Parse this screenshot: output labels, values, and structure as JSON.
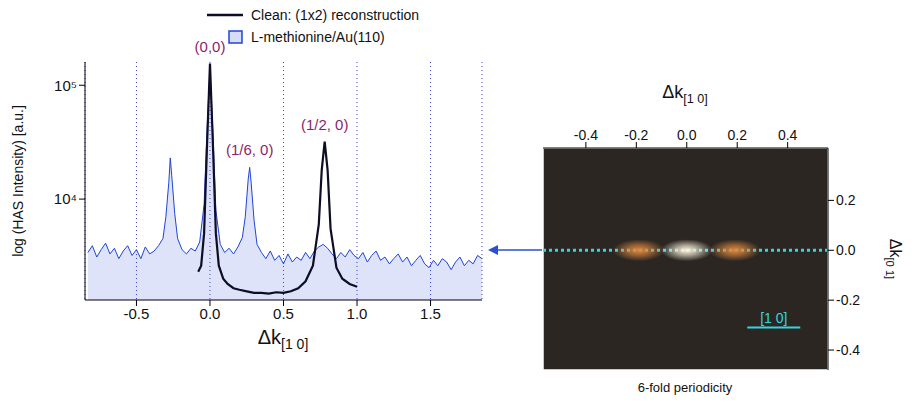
{
  "chart_data": [
    {
      "type": "line",
      "log": "y",
      "grid": true,
      "legend": "top",
      "x_label": "Δk[1 0]",
      "y_label": "log (HAS Intensity) [a.u.]",
      "xlim": [
        -0.85,
        1.85
      ],
      "ylim": [
        1300,
        160000
      ],
      "xticks": [
        -0.5,
        {
          "value": 0,
          "label": "0.0"
        },
        0.5,
        {
          "value": 1,
          "label": "1.0"
        },
        1.5
      ],
      "yticks": [
        {
          "value": 10000,
          "label": "10⁴"
        },
        {
          "value": 100000,
          "label": "10⁵"
        }
      ],
      "series": [
        {
          "name": "Clean: (1x2) reconstruction",
          "type": "line",
          "color": "#0d0d26",
          "x": [
            -0.08,
            -0.06,
            -0.04,
            -0.02,
            0,
            0.02,
            0.04,
            0.06,
            0.09,
            0.12,
            0.16,
            0.2,
            0.25,
            0.3,
            0.35,
            0.4,
            0.45,
            0.5,
            0.55,
            0.6,
            0.65,
            0.7,
            0.74,
            0.76,
            0.78,
            0.8,
            0.82,
            0.86,
            0.9,
            0.95,
            1.0
          ],
          "values": [
            2300,
            2600,
            5000,
            30000,
            155000,
            30000,
            5000,
            2600,
            2000,
            1800,
            1650,
            1600,
            1550,
            1500,
            1500,
            1480,
            1520,
            1500,
            1550,
            1650,
            1900,
            2600,
            6000,
            18000,
            32000,
            18000,
            5500,
            2500,
            2000,
            1800,
            1700
          ]
        },
        {
          "name": "L-methionine/Au(110)",
          "type": "area",
          "color": "#1f45d6",
          "x": [
            -0.83,
            -0.8,
            -0.77,
            -0.74,
            -0.71,
            -0.68,
            -0.65,
            -0.62,
            -0.59,
            -0.56,
            -0.53,
            -0.5,
            -0.47,
            -0.44,
            -0.41,
            -0.38,
            -0.35,
            -0.32,
            -0.3,
            -0.28,
            -0.27,
            -0.26,
            -0.24,
            -0.22,
            -0.19,
            -0.16,
            -0.13,
            -0.1,
            -0.07,
            -0.04,
            -0.02,
            0,
            0.02,
            0.04,
            0.07,
            0.1,
            0.13,
            0.16,
            0.19,
            0.22,
            0.24,
            0.26,
            0.27,
            0.28,
            0.3,
            0.32,
            0.35,
            0.38,
            0.41,
            0.44,
            0.47,
            0.5,
            0.53,
            0.56,
            0.59,
            0.62,
            0.65,
            0.68,
            0.71,
            0.74,
            0.77,
            0.8,
            0.83,
            0.86,
            0.89,
            0.92,
            0.95,
            0.98,
            1.01,
            1.04,
            1.07,
            1.1,
            1.13,
            1.16,
            1.19,
            1.22,
            1.25,
            1.28,
            1.31,
            1.34,
            1.37,
            1.4,
            1.43,
            1.46,
            1.49,
            1.52,
            1.55,
            1.58,
            1.61,
            1.64,
            1.67,
            1.7,
            1.73,
            1.76,
            1.79,
            1.82,
            1.85
          ],
          "values": [
            3400,
            3900,
            3100,
            3600,
            4100,
            3300,
            3700,
            3000,
            3500,
            3900,
            3200,
            3600,
            3000,
            3800,
            3300,
            3500,
            3900,
            4500,
            7000,
            14000,
            23000,
            16000,
            7500,
            4500,
            3600,
            3300,
            3700,
            3500,
            4200,
            9000,
            40000,
            140000,
            38000,
            8000,
            4000,
            3400,
            3700,
            3300,
            3800,
            4600,
            7000,
            15000,
            19000,
            14000,
            6500,
            4000,
            3400,
            3000,
            3500,
            2900,
            3200,
            2700,
            3300,
            2800,
            3100,
            2900,
            3400,
            3000,
            3500,
            3800,
            4000,
            3700,
            3300,
            3000,
            3400,
            3100,
            3600,
            3200,
            3000,
            3400,
            2800,
            3200,
            3500,
            2900,
            3100,
            2700,
            3000,
            3300,
            2800,
            3100,
            2600,
            2900,
            3200,
            2700,
            2500,
            2900,
            2600,
            3000,
            2800,
            2400,
            2800,
            3100,
            2600,
            2900,
            2700,
            3200,
            3000
          ]
        }
      ],
      "annotations": [
        {
          "text": "(0,0)",
          "x": 0,
          "y": 155000,
          "color": "#8b1f6e"
        },
        {
          "text": "(1/6, 0)",
          "x": 0.27,
          "y": 19000,
          "color": "#8b1f6e"
        },
        {
          "text": "(1/2, 0)",
          "x": 0.78,
          "y": 32000,
          "color": "#8b1f6e"
        }
      ]
    },
    {
      "type": "image",
      "caption": "6-fold periodicity",
      "x_label": "Δk[1 0]",
      "y_label": "Δk[0 1]",
      "xlim": [
        -0.57,
        0.56
      ],
      "ylim": [
        -0.48,
        0.41
      ],
      "xticks": [
        -0.4,
        -0.2,
        {
          "value": 0,
          "label": "0.0"
        },
        0.2,
        0.4
      ],
      "yticks": [
        -0.4,
        -0.2,
        {
          "value": 0,
          "label": "0.0"
        },
        0.2
      ],
      "spots": [
        {
          "x": -0.19,
          "y": 0,
          "color": "#e08a40"
        },
        {
          "x": 0,
          "y": 0,
          "color": "#fff6e0"
        },
        {
          "x": 0.19,
          "y": 0,
          "color": "#e08a40"
        }
      ],
      "cut_line": {
        "y": 0,
        "color": "#33d6e0"
      },
      "scale_bar": {
        "label": "[1 0]",
        "x": [
          0.24,
          0.45
        ],
        "y": -0.31,
        "color": "#33d6e0"
      }
    }
  ]
}
